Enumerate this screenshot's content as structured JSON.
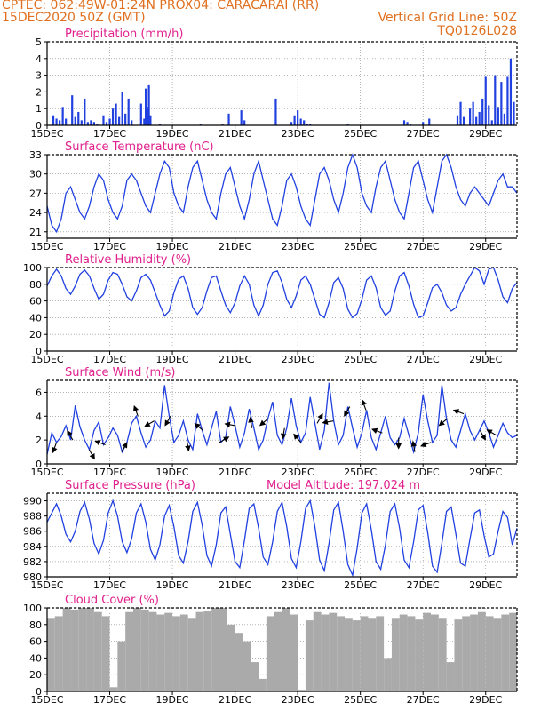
{
  "header": {
    "line1_left": "CPTEC:   062:49W-01:24N   PROX04: CARACARAI (RR)",
    "line2_left": "15DEC2020 50Z (GMT)",
    "line2_right": "Vertical Grid Line: 50Z",
    "line3_right": "TQ0126L028"
  },
  "colors": {
    "header": "#e07020",
    "title": "#e0208c",
    "series": "#2040e0",
    "cloud": "#aaaaaa",
    "wind_arrow": "#000000"
  },
  "x_tick_labels": [
    "15DEC",
    "17DEC",
    "19DEC",
    "21DEC",
    "23DEC",
    "25DEC",
    "27DEC",
    "29DEC"
  ],
  "x_tick_days": [
    0,
    2,
    4,
    6,
    8,
    10,
    12,
    14
  ],
  "x_range_days": [
    0,
    15
  ],
  "panels": {
    "precip": {
      "title": "Precipitation (mm/h)",
      "yticks": [
        "0",
        "1",
        "2",
        "3",
        "4",
        "5"
      ]
    },
    "temp": {
      "title": "Surface Temperature (nC)",
      "yticks": [
        "21",
        "24",
        "27",
        "30",
        "33"
      ]
    },
    "rh": {
      "title": "Relative Humidity (%)",
      "yticks": [
        "0",
        "20",
        "40",
        "60",
        "80",
        "100"
      ]
    },
    "wind": {
      "title": "Surface Wind (m/s)",
      "yticks": [
        "0",
        "2",
        "4",
        "6"
      ]
    },
    "pres": {
      "title": "Surface Pressure (hPa)",
      "extra": "Model Altitude: 197.024 m",
      "yticks": [
        "980",
        "982",
        "984",
        "986",
        "988",
        "990"
      ]
    },
    "cloud": {
      "title": "Cloud Cover (%)",
      "yticks": [
        "0",
        "20",
        "40",
        "60",
        "80",
        "100"
      ]
    }
  },
  "chart_data": [
    {
      "type": "bar",
      "title": "Precipitation (mm/h)",
      "ylim": [
        0,
        5
      ],
      "x_unit": "days since 15DEC2020 00Z",
      "x": [
        0.2,
        0.3,
        0.4,
        0.5,
        0.6,
        0.8,
        0.9,
        1.0,
        1.1,
        1.2,
        1.3,
        1.4,
        1.5,
        1.6,
        1.8,
        1.9,
        2.0,
        2.1,
        2.2,
        2.3,
        2.4,
        2.5,
        2.6,
        2.7,
        3.0,
        3.1,
        3.15,
        3.2,
        3.25,
        3.3,
        3.6,
        4.9,
        5.6,
        5.8,
        6.2,
        6.3,
        7.3,
        7.8,
        7.9,
        8.0,
        8.1,
        8.2,
        8.3,
        8.4,
        9.6,
        11.4,
        11.5,
        11.6,
        12.0,
        12.2,
        13.1,
        13.2,
        13.3,
        13.5,
        13.6,
        13.7,
        13.8,
        13.9,
        14.0,
        14.1,
        14.2,
        14.3,
        14.4,
        14.5,
        14.6,
        14.7,
        14.8,
        14.9
      ],
      "values": [
        0.6,
        0.4,
        0.3,
        1.1,
        0.4,
        1.8,
        0.5,
        0.8,
        0.3,
        1.6,
        0.2,
        0.3,
        0.2,
        0.1,
        0.6,
        0.2,
        0.4,
        1.0,
        1.3,
        0.5,
        2.0,
        0.7,
        1.6,
        0.3,
        1.3,
        0.4,
        2.2,
        1.1,
        2.4,
        0.6,
        0.1,
        0.1,
        0.1,
        0.7,
        0.9,
        0.3,
        1.6,
        0.2,
        0.6,
        0.9,
        0.4,
        0.3,
        0.1,
        0.1,
        0.1,
        0.3,
        0.2,
        0.1,
        0.2,
        0.4,
        0.6,
        1.4,
        0.5,
        1.0,
        1.4,
        0.5,
        0.8,
        1.6,
        2.9,
        1.2,
        0.3,
        3.0,
        1.1,
        2.6,
        0.7,
        2.9,
        4.0,
        1.4
      ]
    },
    {
      "type": "line",
      "title": "Surface Temperature (nC)",
      "ylim": [
        20,
        33
      ],
      "x_unit": "days since 15DEC2020 00Z",
      "x": [
        0,
        0.15,
        0.3,
        0.45,
        0.6,
        0.75,
        0.9,
        1.05,
        1.2,
        1.35,
        1.5,
        1.65,
        1.8,
        1.95,
        2.1,
        2.25,
        2.4,
        2.55,
        2.7,
        2.85,
        3.0,
        3.15,
        3.3,
        3.45,
        3.6,
        3.75,
        3.9,
        4.05,
        4.2,
        4.35,
        4.5,
        4.65,
        4.8,
        4.95,
        5.1,
        5.25,
        5.4,
        5.55,
        5.7,
        5.85,
        6.0,
        6.15,
        6.3,
        6.45,
        6.6,
        6.75,
        6.9,
        7.05,
        7.2,
        7.35,
        7.5,
        7.65,
        7.8,
        7.95,
        8.1,
        8.25,
        8.4,
        8.55,
        8.7,
        8.85,
        9.0,
        9.15,
        9.3,
        9.45,
        9.6,
        9.75,
        9.9,
        10.05,
        10.2,
        10.35,
        10.5,
        10.65,
        10.8,
        10.95,
        11.1,
        11.25,
        11.4,
        11.55,
        11.7,
        11.85,
        12.0,
        12.15,
        12.3,
        12.45,
        12.6,
        12.75,
        12.9,
        13.05,
        13.2,
        13.35,
        13.5,
        13.65,
        13.8,
        13.95,
        14.1,
        14.25,
        14.4,
        14.55,
        14.7,
        14.85,
        15.0
      ],
      "values": [
        25,
        22,
        21,
        23,
        27,
        28,
        26,
        24,
        23,
        25,
        28,
        30,
        29,
        26,
        24,
        23,
        25,
        29,
        30,
        29,
        27,
        25,
        24,
        27,
        30,
        32,
        31,
        27,
        25,
        24,
        28,
        31,
        32,
        29,
        26,
        24,
        23,
        27,
        30,
        31,
        28,
        25,
        23,
        26,
        30,
        32,
        29,
        26,
        23,
        22,
        25,
        29,
        30,
        28,
        25,
        23,
        22,
        26,
        30,
        31,
        29,
        26,
        24,
        27,
        31,
        33,
        31,
        27,
        25,
        24,
        28,
        31,
        32,
        29,
        26,
        24,
        23,
        27,
        31,
        32,
        29,
        26,
        24,
        28,
        32,
        33,
        31,
        28,
        26,
        25,
        27,
        28,
        27,
        26,
        25,
        27,
        29,
        30,
        28,
        28,
        27
      ]
    },
    {
      "type": "line",
      "title": "Relative Humidity (%)",
      "ylim": [
        0,
        100
      ],
      "x_unit": "days since 15DEC2020 00Z",
      "x": [
        0,
        0.15,
        0.3,
        0.45,
        0.6,
        0.75,
        0.9,
        1.05,
        1.2,
        1.35,
        1.5,
        1.65,
        1.8,
        1.95,
        2.1,
        2.25,
        2.4,
        2.55,
        2.7,
        2.85,
        3.0,
        3.15,
        3.3,
        3.45,
        3.6,
        3.75,
        3.9,
        4.05,
        4.2,
        4.35,
        4.5,
        4.65,
        4.8,
        4.95,
        5.1,
        5.25,
        5.4,
        5.55,
        5.7,
        5.85,
        6.0,
        6.15,
        6.3,
        6.45,
        6.6,
        6.75,
        6.9,
        7.05,
        7.2,
        7.35,
        7.5,
        7.65,
        7.8,
        7.95,
        8.1,
        8.25,
        8.4,
        8.55,
        8.7,
        8.85,
        9.0,
        9.15,
        9.3,
        9.45,
        9.6,
        9.75,
        9.9,
        10.05,
        10.2,
        10.35,
        10.5,
        10.65,
        10.8,
        10.95,
        11.1,
        11.25,
        11.4,
        11.55,
        11.7,
        11.85,
        12.0,
        12.15,
        12.3,
        12.45,
        12.6,
        12.75,
        12.9,
        13.05,
        13.2,
        13.35,
        13.5,
        13.65,
        13.8,
        13.95,
        14.1,
        14.25,
        14.4,
        14.55,
        14.7,
        14.85,
        15.0
      ],
      "values": [
        78,
        90,
        98,
        90,
        75,
        68,
        78,
        92,
        97,
        90,
        75,
        62,
        68,
        85,
        94,
        92,
        80,
        65,
        60,
        72,
        88,
        92,
        85,
        70,
        55,
        42,
        48,
        70,
        86,
        90,
        75,
        52,
        44,
        52,
        72,
        88,
        90,
        72,
        55,
        46,
        58,
        78,
        90,
        80,
        55,
        42,
        55,
        80,
        94,
        96,
        82,
        62,
        52,
        66,
        85,
        90,
        80,
        62,
        44,
        40,
        58,
        82,
        88,
        75,
        50,
        40,
        45,
        62,
        85,
        90,
        76,
        52,
        43,
        48,
        72,
        90,
        94,
        78,
        56,
        40,
        42,
        58,
        76,
        80,
        70,
        55,
        48,
        52,
        68,
        80,
        90,
        100,
        96,
        80,
        98,
        100,
        85,
        65,
        58,
        75,
        82
      ]
    },
    {
      "type": "line",
      "title": "Surface Wind (m/s)",
      "ylim": [
        0,
        7
      ],
      "x_unit": "days since 15DEC2020 00Z",
      "x": [
        0,
        0.15,
        0.3,
        0.45,
        0.6,
        0.75,
        0.9,
        1.05,
        1.2,
        1.35,
        1.5,
        1.65,
        1.8,
        1.95,
        2.1,
        2.25,
        2.4,
        2.55,
        2.7,
        2.85,
        3.0,
        3.15,
        3.3,
        3.45,
        3.6,
        3.75,
        3.9,
        4.05,
        4.2,
        4.35,
        4.5,
        4.65,
        4.8,
        4.95,
        5.1,
        5.25,
        5.4,
        5.55,
        5.7,
        5.85,
        6.0,
        6.15,
        6.3,
        6.45,
        6.6,
        6.75,
        6.9,
        7.05,
        7.2,
        7.35,
        7.5,
        7.65,
        7.8,
        7.95,
        8.1,
        8.25,
        8.4,
        8.55,
        8.7,
        8.85,
        9.0,
        9.15,
        9.3,
        9.45,
        9.6,
        9.75,
        9.9,
        10.05,
        10.2,
        10.35,
        10.5,
        10.65,
        10.8,
        10.95,
        11.1,
        11.25,
        11.4,
        11.55,
        11.7,
        11.85,
        12.0,
        12.15,
        12.3,
        12.45,
        12.6,
        12.75,
        12.9,
        13.05,
        13.2,
        13.35,
        13.5,
        13.65,
        13.8,
        13.95,
        14.1,
        14.25,
        14.4,
        14.55,
        14.7,
        14.85,
        15.0
      ],
      "values": [
        0.8,
        2.6,
        1.8,
        2.3,
        3.2,
        2.0,
        4.9,
        3.1,
        2.0,
        1.2,
        2.8,
        3.5,
        1.6,
        2.2,
        3.0,
        2.4,
        1.0,
        1.8,
        3.4,
        4.0,
        2.6,
        1.4,
        2.0,
        3.6,
        3.0,
        6.6,
        4.0,
        1.8,
        2.4,
        3.6,
        2.0,
        1.2,
        4.2,
        2.8,
        1.6,
        3.0,
        4.4,
        1.8,
        2.2,
        4.8,
        3.2,
        1.4,
        2.6,
        4.6,
        3.0,
        1.2,
        2.0,
        3.8,
        5.2,
        2.4,
        1.6,
        3.0,
        5.5,
        3.2,
        1.8,
        2.6,
        5.6,
        3.4,
        1.2,
        2.8,
        6.8,
        3.6,
        1.6,
        2.4,
        4.8,
        3.0,
        1.4,
        2.6,
        4.5,
        2.2,
        1.2,
        2.6,
        4.0,
        2.2,
        1.6,
        2.2,
        3.8,
        2.4,
        1.0,
        2.6,
        5.8,
        3.6,
        1.8,
        2.4,
        6.6,
        3.8,
        2.0,
        1.4,
        2.8,
        4.2,
        2.8,
        2.0,
        2.8,
        3.6,
        2.6,
        1.4,
        2.4,
        3.4,
        2.6,
        2.2,
        2.4
      ]
    },
    {
      "type": "line",
      "title": "Surface Pressure (hPa)",
      "ylim": [
        980,
        991
      ],
      "x_unit": "days since 15DEC2020 00Z",
      "x": [
        0,
        0.15,
        0.3,
        0.45,
        0.6,
        0.75,
        0.9,
        1.05,
        1.2,
        1.35,
        1.5,
        1.65,
        1.8,
        1.95,
        2.1,
        2.25,
        2.4,
        2.55,
        2.7,
        2.85,
        3.0,
        3.15,
        3.3,
        3.45,
        3.6,
        3.75,
        3.9,
        4.05,
        4.2,
        4.35,
        4.5,
        4.65,
        4.8,
        4.95,
        5.1,
        5.25,
        5.4,
        5.55,
        5.7,
        5.85,
        6.0,
        6.15,
        6.3,
        6.45,
        6.6,
        6.75,
        6.9,
        7.05,
        7.2,
        7.35,
        7.5,
        7.65,
        7.8,
        7.95,
        8.1,
        8.25,
        8.4,
        8.55,
        8.7,
        8.85,
        9.0,
        9.15,
        9.3,
        9.45,
        9.6,
        9.75,
        9.9,
        10.05,
        10.2,
        10.35,
        10.5,
        10.65,
        10.8,
        10.95,
        11.1,
        11.25,
        11.4,
        11.55,
        11.7,
        11.85,
        12.0,
        12.15,
        12.3,
        12.45,
        12.6,
        12.75,
        12.9,
        13.05,
        13.2,
        13.35,
        13.5,
        13.65,
        13.8,
        13.95,
        14.1,
        14.25,
        14.4,
        14.55,
        14.7,
        14.85,
        15.0
      ],
      "values": [
        987.2,
        988.4,
        989.6,
        988.0,
        985.6,
        984.6,
        986.0,
        988.6,
        989.8,
        987.6,
        984.4,
        983.0,
        984.8,
        988.4,
        990.0,
        988.0,
        984.6,
        983.2,
        985.0,
        988.4,
        989.6,
        987.2,
        983.6,
        982.2,
        984.2,
        988.0,
        989.4,
        986.6,
        982.8,
        981.8,
        984.6,
        988.6,
        989.8,
        986.8,
        982.8,
        981.4,
        984.2,
        988.4,
        989.2,
        985.6,
        982.0,
        981.2,
        984.8,
        989.0,
        989.6,
        986.4,
        982.6,
        981.6,
        984.6,
        988.6,
        989.8,
        986.6,
        982.4,
        981.2,
        984.6,
        989.0,
        990.0,
        986.6,
        982.2,
        980.8,
        984.4,
        988.8,
        989.8,
        986.0,
        981.6,
        980.2,
        983.8,
        988.4,
        989.6,
        986.2,
        982.0,
        981.0,
        984.2,
        988.6,
        989.6,
        986.4,
        982.2,
        981.2,
        984.6,
        988.8,
        989.4,
        985.8,
        981.4,
        980.6,
        984.4,
        988.6,
        989.2,
        985.6,
        981.8,
        981.4,
        985.0,
        988.4,
        988.8,
        985.4,
        982.6,
        983.0,
        986.0,
        988.6,
        987.8,
        984.2,
        986.4
      ]
    },
    {
      "type": "bar",
      "title": "Cloud Cover (%)",
      "ylim": [
        0,
        100
      ],
      "x_unit": "days since 15DEC2020 00Z",
      "x": [
        0,
        0.25,
        0.5,
        0.75,
        1.0,
        1.25,
        1.5,
        1.75,
        2.0,
        2.25,
        2.5,
        2.75,
        3.0,
        3.25,
        3.5,
        3.75,
        4.0,
        4.25,
        4.5,
        4.75,
        5.0,
        5.25,
        5.5,
        5.75,
        6.0,
        6.25,
        6.5,
        6.75,
        7.0,
        7.25,
        7.5,
        7.75,
        8.0,
        8.25,
        8.5,
        8.75,
        9.0,
        9.25,
        9.5,
        9.75,
        10.0,
        10.25,
        10.5,
        10.75,
        11.0,
        11.25,
        11.5,
        11.75,
        12.0,
        12.25,
        12.5,
        12.75,
        13.0,
        13.25,
        13.5,
        13.75,
        14.0,
        14.25,
        14.5,
        14.75
      ],
      "values": [
        88,
        90,
        100,
        98,
        100,
        100,
        95,
        90,
        5,
        60,
        95,
        100,
        98,
        95,
        92,
        94,
        90,
        92,
        88,
        95,
        96,
        100,
        100,
        80,
        70,
        60,
        35,
        15,
        90,
        95,
        100,
        92,
        2,
        85,
        95,
        92,
        94,
        90,
        88,
        85,
        90,
        88,
        90,
        40,
        88,
        92,
        90,
        86,
        94,
        92,
        88,
        35,
        86,
        90,
        92,
        95,
        90,
        88,
        92,
        94
      ]
    }
  ]
}
